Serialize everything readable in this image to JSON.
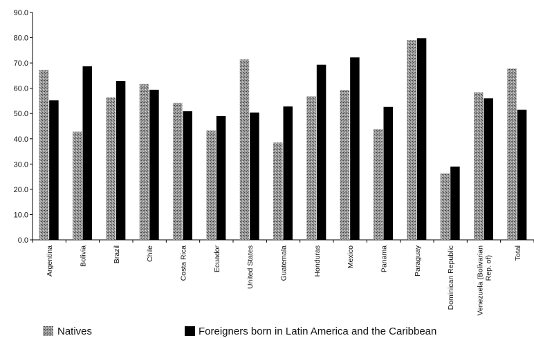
{
  "chart_data": {
    "type": "bar",
    "title": "",
    "xlabel": "",
    "ylabel": "",
    "ylim": [
      0,
      90
    ],
    "yticks": [
      "0.0",
      "10.0",
      "20.0",
      "30.0",
      "40.0",
      "50.0",
      "60.0",
      "70.0",
      "80.0",
      "90.0"
    ],
    "grid": false,
    "legend_position": "bottom",
    "categories": [
      "Argentina",
      "Bolivia",
      "Brazil",
      "Chile",
      "Costa Rica",
      "Ecuador",
      "United States",
      "Guatemala",
      "Honduras",
      "Mexico",
      "Panama",
      "Paraguay",
      "Dominican Republic",
      "Venezuela (Bolivarian Rep. of)",
      "Total"
    ],
    "series": [
      {
        "name": "Natives",
        "color": "#8a8a8a",
        "pattern": "stippled-gray",
        "values": [
          67.3,
          42.8,
          56.4,
          61.7,
          54.2,
          43.3,
          71.4,
          38.5,
          56.8,
          59.3,
          43.8,
          79.0,
          26.3,
          58.4,
          67.8
        ]
      },
      {
        "name": "Foreigners born in Latin America and the Caribbean",
        "color": "#000000",
        "pattern": "solid-black",
        "values": [
          55.2,
          68.7,
          62.9,
          59.4,
          50.9,
          49.0,
          50.4,
          52.8,
          69.3,
          72.2,
          52.6,
          79.8,
          29.0,
          56.0,
          51.5
        ]
      }
    ]
  }
}
